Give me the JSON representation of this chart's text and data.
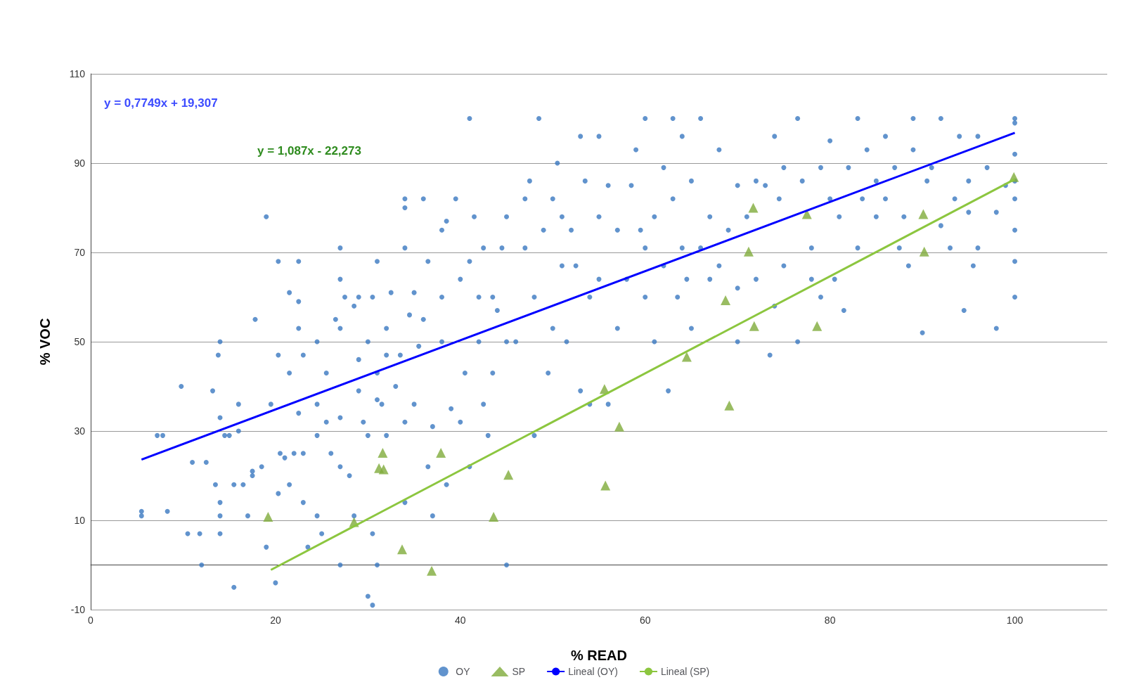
{
  "chart_data": {
    "type": "scatter",
    "xlabel": "% READ",
    "ylabel": "% VOC",
    "xlim": [
      0,
      110
    ],
    "xticks": [
      0,
      20,
      40,
      60,
      80,
      100
    ],
    "ylim": [
      -10,
      110
    ],
    "yticks": [
      -10,
      10,
      30,
      50,
      70,
      90,
      110
    ],
    "grid": "y",
    "legend": "bottom",
    "annotations": [
      "y = 0,7749x + 19,307",
      "y = 1,087x - 22,273"
    ],
    "series": [
      {
        "name": "OY",
        "marker": "circle",
        "color": "#3a78c0",
        "x": [
          5.5,
          5.5,
          7.2,
          7.8,
          8.3,
          9.8,
          10.5,
          11,
          11.8,
          12,
          12.5,
          13.2,
          13.5,
          13.8,
          14,
          14,
          14,
          14,
          14,
          14.5,
          15,
          15.5,
          15.5,
          16,
          16,
          16.5,
          17,
          17.5,
          17.5,
          17.8,
          18.5,
          19,
          19,
          19.5,
          20,
          20.3,
          20.3,
          20.5,
          20.3,
          21,
          21.5,
          21.5,
          21.5,
          22,
          22.5,
          22.5,
          22.5,
          22.5,
          23,
          23,
          23,
          23.5,
          24.5,
          24.5,
          24.5,
          24.5,
          25,
          25.5,
          25.5,
          26.5,
          26,
          27,
          27,
          27,
          27,
          27,
          27,
          27.5,
          28,
          28.5,
          28.5,
          29,
          29,
          29,
          29.5,
          30,
          30,
          30,
          30.5,
          30.5,
          30.5,
          31,
          31,
          31,
          31,
          31.5,
          32,
          32,
          32,
          32.5,
          33,
          33.5,
          34,
          34,
          34,
          34,
          34,
          34.5,
          35,
          35,
          35.5,
          36,
          36,
          36.5,
          36.5,
          37,
          37,
          38,
          38,
          38,
          38.5,
          38.5,
          39,
          39.5,
          40,
          40,
          40.5,
          41,
          41,
          41,
          41.5,
          42,
          42,
          42.5,
          42.5,
          43,
          43.5,
          43.5,
          44,
          44.5,
          45,
          45,
          45,
          46,
          47,
          47,
          47.5,
          48,
          48,
          48.5,
          49,
          49.5,
          50,
          50,
          50.5,
          51,
          51,
          51.5,
          52,
          52.5,
          53,
          53,
          53.5,
          54,
          54,
          55,
          55,
          55,
          56,
          56,
          57,
          57,
          58,
          58.5,
          59,
          59.5,
          60,
          60,
          60,
          61,
          61,
          62,
          62,
          62.5,
          63,
          63,
          63.5,
          64,
          64,
          64.5,
          65,
          65,
          66,
          66,
          67,
          67,
          68,
          68,
          69,
          70,
          70,
          70,
          71,
          72,
          72,
          73,
          73.5,
          74,
          74,
          74.5,
          75,
          75,
          76.5,
          76.5,
          77,
          78,
          78,
          79,
          79,
          80,
          80,
          80.5,
          81,
          81.5,
          82,
          83,
          83,
          83.5,
          84,
          85,
          85,
          86,
          86,
          87,
          87.5,
          88,
          88.5,
          89,
          89,
          90,
          90.5,
          91,
          92,
          92,
          93,
          93.5,
          94,
          94.5,
          95,
          95,
          95.5,
          96,
          96,
          97,
          98,
          98,
          99,
          100,
          100,
          100,
          100,
          100,
          100,
          100,
          100
        ],
        "values": [
          11,
          12,
          29,
          29,
          12,
          40,
          7,
          23,
          7,
          0,
          23,
          39,
          18,
          47,
          50,
          33,
          14,
          11,
          7,
          29,
          29,
          -5,
          18,
          36,
          30,
          18,
          11,
          21,
          20,
          55,
          22,
          4,
          78,
          36,
          -4,
          68,
          47,
          25,
          16,
          24,
          43,
          61,
          18,
          25,
          34,
          59,
          53,
          68,
          47,
          25,
          14,
          4,
          50,
          36,
          29,
          11,
          7,
          43,
          32,
          55,
          25,
          71,
          64,
          53,
          33,
          22,
          0,
          60,
          20,
          58,
          11,
          60,
          46,
          39,
          32,
          50,
          29,
          -7,
          60,
          -9,
          7,
          37,
          68,
          43,
          0,
          36,
          53,
          29,
          47,
          61,
          40,
          47,
          71,
          80,
          82,
          32,
          14,
          56,
          61,
          36,
          49,
          82,
          55,
          68,
          22,
          31,
          11,
          75,
          60,
          50,
          77,
          18,
          35,
          82,
          64,
          32,
          43,
          68,
          100,
          22,
          78,
          60,
          50,
          71,
          36,
          29,
          60,
          43,
          57,
          71,
          78,
          0,
          50,
          50,
          82,
          71,
          86,
          60,
          29,
          100,
          75,
          43,
          82,
          53,
          90,
          78,
          67,
          50,
          75,
          67,
          96,
          39,
          86,
          36,
          60,
          96,
          78,
          64,
          36,
          85,
          75,
          53,
          64,
          85,
          93,
          75,
          100,
          71,
          60,
          78,
          50,
          89,
          67,
          39,
          100,
          82,
          60,
          96,
          71,
          64,
          86,
          53,
          100,
          71,
          78,
          64,
          93,
          67,
          75,
          85,
          62,
          50,
          78,
          86,
          64,
          85,
          47,
          96,
          58,
          82,
          89,
          67,
          100,
          50,
          86,
          71,
          64,
          89,
          60,
          95,
          82,
          64,
          78,
          57,
          89,
          71,
          100,
          82,
          93,
          86,
          78,
          82,
          96,
          89,
          71,
          78,
          67,
          100,
          93,
          52,
          86,
          89,
          100,
          76,
          71,
          82,
          96,
          57,
          86,
          79,
          67,
          96,
          71,
          89,
          53,
          79,
          85,
          100,
          99,
          92,
          86,
          82,
          75,
          68,
          60
        ]
      },
      {
        "name": "SP",
        "marker": "triangle",
        "color": "#7fab3b",
        "x": [
          19.2,
          28.5,
          31.2,
          31.6,
          31.7,
          33.7,
          36.9,
          37.9,
          43.6,
          45.2,
          55.6,
          55.7,
          57.2,
          64.5,
          68.7,
          69.1,
          71.2,
          71.7,
          71.8,
          77.5,
          78.6,
          90.1,
          90.2,
          99.9
        ],
        "values": [
          10.8,
          9.6,
          21.7,
          25.1,
          21.4,
          3.5,
          -1.3,
          25.1,
          10.8,
          20.2,
          39.4,
          17.8,
          31,
          46.6,
          59.3,
          35.7,
          70.2,
          80,
          53.5,
          78.6,
          53.5,
          78.6,
          70.2,
          86.9
        ]
      },
      {
        "name": "Lineal (OY)",
        "type": "line",
        "marker": "none",
        "color": "#0000ff",
        "x": [
          5.5,
          100
        ],
        "values": [
          23.6,
          96.8
        ]
      },
      {
        "name": "Lineal (SP)",
        "type": "line",
        "marker": "none",
        "color": "#8cc63f",
        "x": [
          19.5,
          100
        ],
        "values": [
          -1.1,
          86.4
        ]
      }
    ]
  }
}
